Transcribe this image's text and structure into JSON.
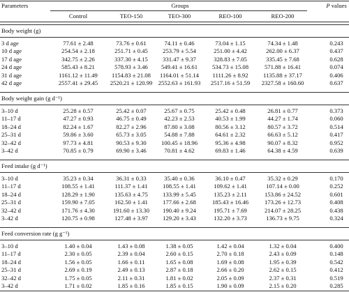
{
  "header": {
    "parameters": "Parameters",
    "groups": "Groups",
    "p_values": "P values",
    "columns": [
      "Control",
      "TEO-150",
      "TEO-300",
      "REO-100",
      "REO-200"
    ]
  },
  "sections": [
    {
      "title": "Body weight (g)",
      "rows": [
        [
          "3 d age",
          "77.61 ± 2.48",
          "73.76 ± 0.61",
          "74.11 ± 0.46",
          "73.04 ± 1.15",
          "74.34 ± 1.48",
          "0.243"
        ],
        [
          "10 d age",
          "254.54 ± 2.18",
          "251.71 ± 0.45",
          "253.79 ± 5.54",
          "251.00 ± 4.42",
          "262.00 ± 6.37",
          "0.437"
        ],
        [
          "17 d age",
          "342.75 ± 2.26",
          "337.30 ± 4.15",
          "331.47 ± 9.37",
          "328.83 ± 7.05",
          "335.45 ± 7.68",
          "0.628"
        ],
        [
          "24 d age",
          "585.43 ± 8.21",
          "578.93 ± 3.46",
          "549.41 ± 16.61",
          "534.73 ± 15.08",
          "571.88 ± 16.41",
          "0.074"
        ],
        [
          "31 d age",
          "1161.12 ± 11.49",
          "1154.83 ± 21.08",
          "1164.01 ± 51.14",
          "1111.26 ± 8.92",
          "1135.88 ± 37.17",
          "0.406"
        ],
        [
          "42 d age",
          "2557.41 ± 29.45",
          "2520.21 ± 120.99",
          "2552.63 ± 161.93",
          "2517.16 ± 51.59",
          "2327.58 ± 160.60",
          "0.637"
        ]
      ]
    },
    {
      "title": "Body weight gain (g d⁻¹)",
      "rows": [
        [
          "3–10 d",
          "25.28 ± 0.57",
          "25.42 ± 0.07",
          "25.67 ± 0.75",
          "25.42 ± 0.48",
          "26.81 ± 0.77",
          "0.373"
        ],
        [
          "11–17 d",
          "47.27 ± 0.93",
          "46.75 ± 0.49",
          "42.23 ± 2.53",
          "40.53 ± 1.99",
          "44.27 ± 1.74",
          "0.060"
        ],
        [
          "18–24 d",
          "82.24 ± 1.67",
          "82.27 ± 2.96",
          "87.80 ± 3.08",
          "80.56 ± 3.12",
          "80.57 ± 3.72",
          "0.514"
        ],
        [
          "25–31 d",
          "59.86 ± 3.60",
          "65.73 ± 3.05",
          "54.88 ± 7.88",
          "64.61 ± 2.32",
          "66.63 ± 5.12",
          "0.417"
        ],
        [
          "32–42 d",
          "97.73 ± 4.81",
          "90.53 ± 9.30",
          "100.45 ± 18.96",
          "95.36 ± 4.98",
          "90.07 ± 8.32",
          "0.952"
        ],
        [
          "3–42 d",
          "70.85 ± 0.79",
          "69.90 ± 3.46",
          "70.81 ± 4.62",
          "69.83 ± 1.46",
          "64.38 ± 4.59",
          "0.639"
        ]
      ]
    },
    {
      "title": "Feed intake (g d⁻¹)",
      "rows": [
        [
          "3–10 d",
          "35.23 ± 0.34",
          "36.31 ± 0.33",
          "35.40 ± 0.36",
          "36.10 ± 0.47",
          "35.32 ± 0.29",
          "0.170"
        ],
        [
          "11–17 d",
          "108.55 ± 1.41",
          "111.37 ± 1.41",
          "108.55 ± 1.41",
          "109.62 ± 1.41",
          "107.14 ± 0.00",
          "0.252"
        ],
        [
          "18–24 d",
          "128.29 ± 1.90",
          "135.63 ± 4.75",
          "133.99 ± 5.45",
          "135.23 ± 2.11",
          "153.86 ± 24.52",
          "0.601"
        ],
        [
          "25–31 d",
          "159.90 ± 7.05",
          "162.50 ± 1.41",
          "177.66 ± 2.68",
          "185.43 ± 16.46",
          "173.26 ± 12.73",
          "0.408"
        ],
        [
          "32–42 d",
          "171.76 ± 4.30",
          "191.60 ± 13.30",
          "190.40 ± 9.24",
          "195.71 ± 7.69",
          "214.07 ± 28.25",
          "0.438"
        ],
        [
          "3–42 d",
          "120.75 ± 0.98",
          "127.48 ± 3.97",
          "129.20 ± 3.43",
          "132.20 ± 3.73",
          "136.73 ± 9.75",
          "0.324"
        ]
      ]
    },
    {
      "title": "Feed conversion rate (g g⁻¹)",
      "rows": [
        [
          "3–10 d",
          "1.40 ± 0.04",
          "1.43 ± 0.08",
          "1.38 ± 0.05",
          "1.42 ± 0.04",
          "1.32 ± 0.04",
          "0.400"
        ],
        [
          "11–17 d",
          "2.30 ± 0.05",
          "2.39 ± 0.04",
          "2.60 ± 0.15",
          "2.70 ± 0.18",
          "2.43 ± 0.09",
          "0.148"
        ],
        [
          "18–24 d",
          "1.56 ± 0.05",
          "1.66 ± 0.11",
          "1.65 ± 0.08",
          "1.69 ± 0.08",
          "1.95 ± 0.39",
          "0.542"
        ],
        [
          "25–31 d",
          "2.69 ± 0.19",
          "2.49 ± 0.13",
          "2.87 ± 0.18",
          "2.66 ± 0.20",
          "2.62 ± 0.15",
          "0.412"
        ],
        [
          "32–42 d",
          "1.75 ± 0.05",
          "2.11 ± 0.31",
          "1.81 ± 0.02",
          "2.05 ± 0.09",
          "2.37 ± 0.31",
          "0.519"
        ],
        [
          "3–42 d",
          "1.71 ± 0.02",
          "1.85 ± 0.16",
          "1.85 ± 0.15",
          "1.90 ± 0.09",
          "2.15 ± 0.20",
          "0.285"
        ]
      ]
    }
  ]
}
